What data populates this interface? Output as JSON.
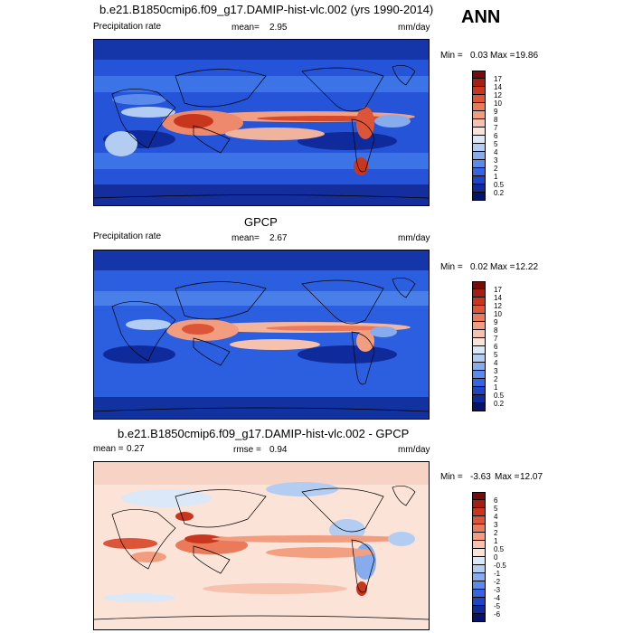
{
  "season": "ANN",
  "panels": [
    {
      "title": "b.e21.B1850cmip6.f09_g17.DAMIP-hist-vlc.002 (yrs 1990-2014)",
      "left_label": "Precipitation rate",
      "mean_label": "mean=",
      "mean_value": "2.95",
      "units": "mm/day",
      "min_label": "Min =",
      "min_value": "0.03",
      "max_label": "Max =",
      "max_value": "19.86",
      "colorbar_labels": [
        "17",
        "14",
        "12",
        "10",
        "9",
        "8",
        "7",
        "6",
        "5",
        "4",
        "3",
        "2",
        "1",
        "0.5",
        "0.2"
      ]
    },
    {
      "title": "GPCP",
      "left_label": "Precipitation rate",
      "mean_label": "mean=",
      "mean_value": "2.67",
      "units": "mm/day",
      "min_label": "Min =",
      "min_value": "0.02",
      "max_label": "Max =",
      "max_value": "12.22",
      "colorbar_labels": [
        "17",
        "14",
        "12",
        "10",
        "9",
        "8",
        "7",
        "6",
        "5",
        "4",
        "3",
        "2",
        "1",
        "0.5",
        "0.2"
      ]
    },
    {
      "title": "b.e21.B1850cmip6.f09_g17.DAMIP-hist-vlc.002 - GPCP",
      "left_label": "mean =",
      "left_value": "0.27",
      "rmse_label": "rmse =",
      "rmse_value": "0.94",
      "units": "mm/day",
      "min_label": "Min =",
      "min_value": "-3.63",
      "max_label": "Max =",
      "max_value": "12.07",
      "colorbar_labels": [
        "6",
        "5",
        "4",
        "3",
        "2",
        "1",
        "0.5",
        "0",
        "-0.5",
        "-1",
        "-2",
        "-3",
        "-4",
        "-5",
        "-6"
      ]
    }
  ],
  "colors": {
    "precip_scale": [
      "#7a0a0a",
      "#a51e0f",
      "#c8361e",
      "#dc5538",
      "#ea7a5a",
      "#f29c80",
      "#f7c2ad",
      "#fbe3d8",
      "#dbe8f7",
      "#b3cdf2",
      "#86acee",
      "#5a8aeb",
      "#3566e0",
      "#1f45c4",
      "#0f2a9a",
      "#06136b"
    ],
    "diff_scale": [
      "#7a0a0a",
      "#a51e0f",
      "#c8361e",
      "#dc5538",
      "#ea7a5a",
      "#f29c80",
      "#f7c2ad",
      "#fbe3d8",
      "#dbe8f7",
      "#b3cdf2",
      "#86acee",
      "#5a8aeb",
      "#3566e0",
      "#1f45c4",
      "#0f2a9a",
      "#06136b"
    ]
  }
}
